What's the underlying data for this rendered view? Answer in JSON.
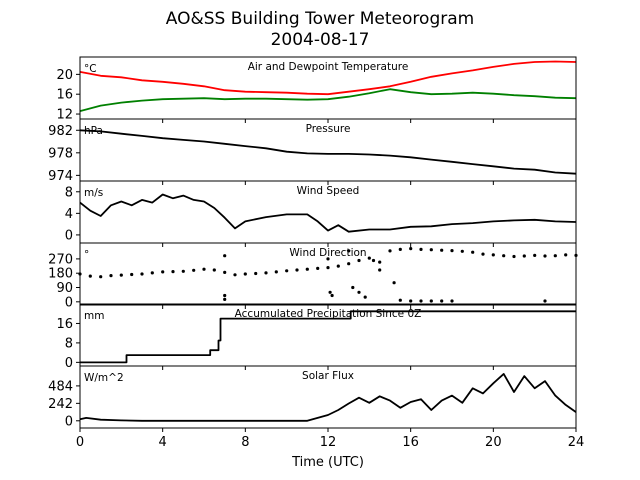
{
  "figure": {
    "title_line1": "AO&SS Building Tower Meteorogram",
    "title_line2": "2004-08-17",
    "xlabel": "Time (UTC)",
    "x_ticks": [
      "0",
      "4",
      "8",
      "12",
      "16",
      "20",
      "24"
    ]
  },
  "chart_data": [
    {
      "type": "line",
      "title": "Air and Dewpoint Temperature",
      "unit": "°C",
      "xlim": [
        0,
        24
      ],
      "ylim": [
        11,
        23.5
      ],
      "yticks": [
        12,
        16,
        20
      ],
      "series": [
        {
          "color": "#ff0000",
          "x": [
            0,
            1,
            2,
            3,
            4,
            5,
            6,
            7,
            8,
            9,
            10,
            11,
            12,
            13,
            14,
            15,
            16,
            17,
            18,
            19,
            20,
            21,
            22,
            23,
            24
          ],
          "y": [
            20.5,
            19.7,
            19.4,
            18.8,
            18.5,
            18.1,
            17.6,
            16.8,
            16.5,
            16.4,
            16.3,
            16.1,
            16.0,
            16.5,
            17.0,
            17.6,
            18.5,
            19.5,
            20.2,
            20.8,
            21.5,
            22.1,
            22.5,
            22.6,
            22.5
          ]
        },
        {
          "color": "#008000",
          "x": [
            0,
            1,
            2,
            3,
            4,
            5,
            6,
            7,
            8,
            9,
            10,
            11,
            12,
            13,
            14,
            15,
            16,
            17,
            18,
            19,
            20,
            21,
            22,
            23,
            24
          ],
          "y": [
            12.6,
            13.7,
            14.3,
            14.7,
            15.0,
            15.1,
            15.2,
            15.0,
            15.1,
            15.1,
            15.0,
            14.9,
            15.0,
            15.5,
            16.2,
            17.0,
            16.4,
            16.0,
            16.1,
            16.3,
            16.1,
            15.8,
            15.6,
            15.3,
            15.2
          ]
        }
      ]
    },
    {
      "type": "line",
      "title": "Pressure",
      "unit": "hPa",
      "xlim": [
        0,
        24
      ],
      "ylim": [
        973,
        984
      ],
      "yticks": [
        974,
        978,
        982
      ],
      "series": [
        {
          "color": "#000000",
          "x": [
            0,
            1,
            2,
            3,
            4,
            5,
            6,
            7,
            8,
            9,
            10,
            11,
            12,
            13,
            14,
            15,
            16,
            17,
            18,
            19,
            20,
            21,
            22,
            23,
            24
          ],
          "y": [
            982.0,
            981.8,
            981.4,
            981.0,
            980.6,
            980.3,
            980.0,
            979.6,
            979.2,
            978.8,
            978.2,
            977.9,
            977.8,
            977.8,
            977.7,
            977.5,
            977.2,
            976.8,
            976.4,
            976.0,
            975.6,
            975.2,
            975.0,
            974.5,
            974.3
          ]
        }
      ]
    },
    {
      "type": "line",
      "title": "Wind Speed",
      "unit": "m/s",
      "xlim": [
        0,
        24
      ],
      "ylim": [
        -1.5,
        10
      ],
      "yticks": [
        0,
        4,
        8
      ],
      "series": [
        {
          "color": "#000000",
          "x": [
            0,
            0.5,
            1,
            1.5,
            2,
            2.5,
            3,
            3.5,
            4,
            4.5,
            5,
            5.5,
            6,
            6.5,
            7,
            7.5,
            8,
            9,
            10,
            11,
            11.5,
            12,
            12.5,
            13,
            14,
            15,
            16,
            17,
            18,
            19,
            20,
            21,
            22,
            23,
            24
          ],
          "y": [
            6,
            4.5,
            3.5,
            5.5,
            6.2,
            5.5,
            6.5,
            6,
            7.5,
            6.8,
            7.3,
            6.5,
            6.2,
            5,
            3.2,
            1.2,
            2.5,
            3.3,
            3.8,
            3.8,
            2.5,
            0.8,
            1.8,
            0.6,
            1,
            1,
            1.5,
            1.6,
            2,
            2.2,
            2.5,
            2.7,
            2.8,
            2.5,
            2.4
          ]
        }
      ]
    },
    {
      "type": "scatter",
      "title": "Wind Direction",
      "unit": "°",
      "xlim": [
        0,
        24
      ],
      "ylim": [
        -20,
        370
      ],
      "yticks": [
        0,
        90,
        180,
        270
      ],
      "series": [
        {
          "color": "#000000",
          "x": [
            0,
            0.5,
            1,
            1.5,
            2,
            2.5,
            3,
            3.5,
            4,
            4.5,
            5,
            5.5,
            6,
            6.5,
            7,
            7.5,
            8,
            8.5,
            9,
            9.5,
            10,
            10.5,
            11,
            11.5,
            12,
            12.5,
            13,
            13.5,
            14,
            14.5,
            15,
            15.5,
            16,
            16.5,
            17,
            17.5,
            18,
            18.5,
            19,
            19.5,
            20,
            20.5,
            21,
            21.5,
            22,
            22.5,
            23,
            23.5,
            24
          ],
          "y": [
            175,
            162,
            158,
            165,
            168,
            172,
            175,
            182,
            188,
            190,
            192,
            198,
            205,
            200,
            185,
            170,
            175,
            178,
            182,
            188,
            195,
            200,
            205,
            210,
            215,
            225,
            240,
            260,
            275,
            250,
            320,
            330,
            335,
            330,
            328,
            325,
            322,
            318,
            312,
            300,
            295,
            290,
            285,
            288,
            292,
            288,
            290,
            295,
            292
          ]
        },
        {
          "color": "#000000",
          "x": [
            7,
            7,
            7,
            12,
            12.1,
            12.2,
            13,
            13.2,
            13.5,
            13.8,
            14.2,
            14.5,
            15.2,
            15.5,
            16,
            16.5,
            17,
            17.5,
            18,
            22.5
          ],
          "y": [
            290,
            40,
            15,
            270,
            60,
            40,
            320,
            90,
            60,
            30,
            260,
            200,
            120,
            10,
            5,
            5,
            5,
            5,
            5,
            5
          ]
        }
      ]
    },
    {
      "type": "line",
      "title": "Accumulated Precipitation Since 0Z",
      "unit": "mm",
      "xlim": [
        0,
        24
      ],
      "ylim": [
        -1.5,
        24
      ],
      "yticks": [
        0,
        8,
        16
      ],
      "series": [
        {
          "color": "#000000",
          "x": [
            0,
            2.25,
            2.25,
            6.3,
            6.3,
            6.7,
            6.7,
            6.8,
            6.8,
            13.1,
            13.1,
            24
          ],
          "y": [
            0,
            0,
            3,
            3,
            5,
            5,
            9,
            9,
            18,
            18,
            21,
            21
          ]
        }
      ]
    },
    {
      "type": "line",
      "title": "Solar Flux",
      "unit": "W/m^2",
      "xlim": [
        0,
        24
      ],
      "ylim": [
        -100,
        760
      ],
      "yticks": [
        0,
        242,
        484
      ],
      "series": [
        {
          "color": "#000000",
          "x": [
            0,
            0.3,
            1,
            2,
            3,
            4,
            5,
            6,
            7,
            8,
            9,
            10,
            11,
            12,
            12.5,
            13,
            13.5,
            14,
            14.5,
            15,
            15.5,
            16,
            16.5,
            17,
            17.5,
            18,
            18.5,
            19,
            19.5,
            20,
            20.5,
            21,
            21.5,
            22,
            22.5,
            23,
            23.5,
            24
          ],
          "y": [
            20,
            40,
            15,
            5,
            0,
            0,
            0,
            0,
            0,
            0,
            0,
            0,
            0,
            80,
            150,
            240,
            320,
            250,
            340,
            280,
            180,
            260,
            300,
            150,
            280,
            350,
            250,
            450,
            380,
            520,
            650,
            400,
            620,
            450,
            550,
            350,
            220,
            120
          ]
        }
      ]
    }
  ]
}
